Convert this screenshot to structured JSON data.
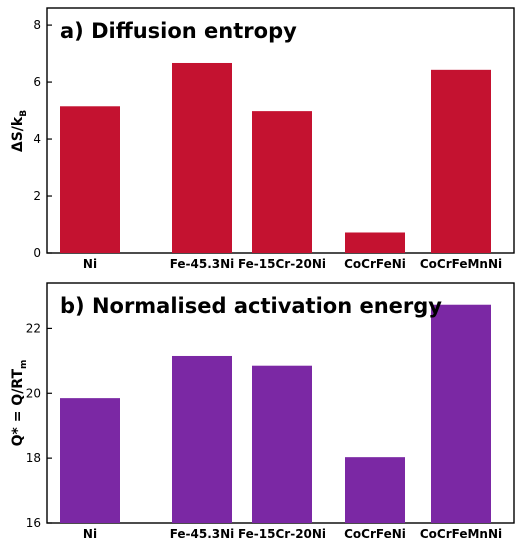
{
  "chart_data": [
    {
      "type": "bar",
      "title": "a) Diffusion entropy",
      "ylabel": "ΔS/k",
      "ylabel_sub": "B",
      "categories": [
        "Ni",
        "Fe-45.3Ni",
        "Fe-15Cr-20Ni",
        "CoCrFeNi",
        "CoCrFeMnNi"
      ],
      "values": [
        5.15,
        6.67,
        4.98,
        0.72,
        6.43
      ],
      "ylim": [
        0,
        8.6
      ],
      "yticks": [
        0,
        2,
        4,
        6,
        8
      ],
      "color": "#c41230",
      "grid": false,
      "legend": "none"
    },
    {
      "type": "bar",
      "title": "b) Normalised activation energy",
      "ylabel": "Q* = Q/RT",
      "ylabel_sub": "m",
      "categories": [
        "Ni",
        "Fe-45.3Ni",
        "Fe-15Cr-20Ni",
        "CoCrFeNi",
        "CoCrFeMnNi"
      ],
      "values": [
        19.85,
        21.15,
        20.85,
        18.03,
        22.73
      ],
      "ylim": [
        16,
        23.4
      ],
      "yticks": [
        16,
        18,
        20,
        22
      ],
      "color": "#7b28a4",
      "grid": false,
      "legend": "none"
    }
  ]
}
